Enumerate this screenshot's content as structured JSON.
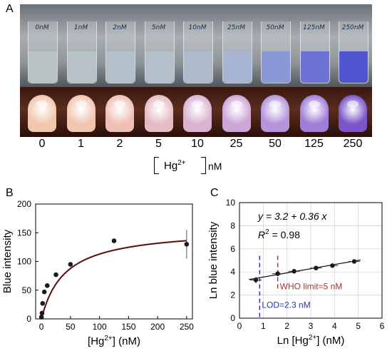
{
  "panel_labels": {
    "a": "A",
    "b": "B",
    "c": "C"
  },
  "photo": {
    "tube_labels": [
      "0nM",
      "1nM",
      "2nM",
      "5nM",
      "10nM",
      "25nM",
      "50nM",
      "125nM",
      "250nM"
    ],
    "liquid_colors": [
      "#b9c3c5",
      "#b7c2c7",
      "#b4c0c9",
      "#b3bfcb",
      "#aebbcd",
      "#a6b4d2",
      "#8a98d8",
      "#6c72d6",
      "#5055cf"
    ],
    "drop_colors": [
      "#f2c6ad",
      "#f2c5b0",
      "#efc0b6",
      "#e4bcc4",
      "#d9b3cf",
      "#cba6d8",
      "#b594dc",
      "#a07ed8",
      "#7a56c8"
    ],
    "concentrations": [
      "0",
      "1",
      "2",
      "5",
      "10",
      "25",
      "50",
      "125",
      "250"
    ],
    "unit_ion": "Hg",
    "unit_ion_sup": "2+",
    "unit_nm": "nM"
  },
  "chart_data": [
    {
      "type": "scatter",
      "xlabel": "[Hg2+] (nM)",
      "ylabel": "Blue intensity",
      "xlim": [
        -10,
        260
      ],
      "ylim": [
        0,
        200
      ],
      "xticks": [
        0,
        50,
        100,
        150,
        200,
        250
      ],
      "yticks": [
        0,
        50,
        100,
        150,
        200
      ],
      "points": [
        {
          "x": 0,
          "y": 3
        },
        {
          "x": 1,
          "y": 10
        },
        {
          "x": 2,
          "y": 27
        },
        {
          "x": 5,
          "y": 47
        },
        {
          "x": 10,
          "y": 58
        },
        {
          "x": 25,
          "y": 77
        },
        {
          "x": 50,
          "y": 95
        },
        {
          "x": 125,
          "y": 136
        },
        {
          "x": 250,
          "y": 130,
          "err": 25
        }
      ],
      "fit": {
        "type": "saturation",
        "vmax": 158,
        "k": 40
      },
      "colors": {
        "points": "#1a1a1a",
        "fit": "#5c0a0a",
        "axis": "#000000"
      }
    },
    {
      "type": "scatter",
      "xlabel": "Ln [Hg2+] (nM)",
      "ylabel": "Ln blue intensity",
      "xlim": [
        0,
        6
      ],
      "ylim": [
        0,
        10
      ],
      "xticks": [
        0,
        1,
        2,
        3,
        4,
        5,
        6
      ],
      "yticks": [
        0,
        2,
        4,
        6,
        8,
        10
      ],
      "points": [
        {
          "x": 0.69,
          "y": 3.3,
          "err": 0.28
        },
        {
          "x": 1.61,
          "y": 3.85,
          "err": 0.2
        },
        {
          "x": 2.3,
          "y": 4.06,
          "err": 0.12
        },
        {
          "x": 3.22,
          "y": 4.34,
          "err": 0.1
        },
        {
          "x": 3.91,
          "y": 4.55,
          "err": 0.1
        },
        {
          "x": 4.83,
          "y": 4.91,
          "err": 0.05
        }
      ],
      "fit": {
        "intercept": 3.2,
        "slope": 0.36,
        "x_range": [
          0.4,
          5.1
        ]
      },
      "equation": "y = 3.2 + 0.36 x",
      "r2_label": "R",
      "r2_sup": "2",
      "r2_value": "= 0.98",
      "lod": {
        "x": 0.85,
        "label": "LOD=2.3 nM",
        "color": "#2f35a8"
      },
      "who": {
        "x": 1.61,
        "label": "WHO limit=5 nM",
        "color": "#a8382b"
      },
      "colors": {
        "points": "#1a1a1a",
        "fit": "#1a1a1a",
        "axis": "#000000",
        "grid": "#d0d0d0"
      }
    }
  ]
}
